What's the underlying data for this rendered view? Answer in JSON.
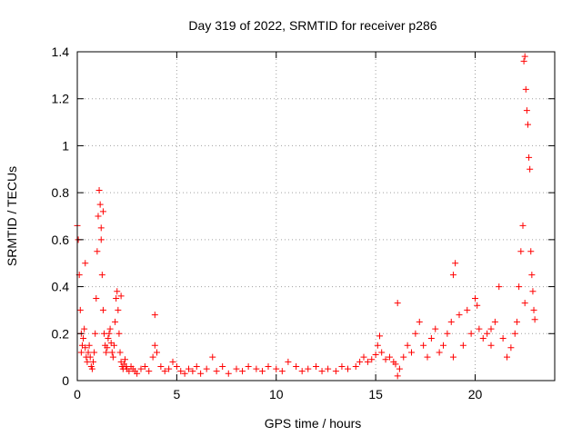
{
  "chart_data": {
    "type": "scatter",
    "title": "Day 319 of 2022, SRMTID for receiver p286",
    "xlabel": "GPS time / hours",
    "ylabel": "SRMTID / TECUs",
    "xlim": [
      0,
      24
    ],
    "ylim": [
      0,
      1.4
    ],
    "xticks": [
      0,
      5,
      10,
      15,
      20
    ],
    "xtick_labels": [
      "0",
      "5",
      "10",
      "15",
      "20"
    ],
    "yticks": [
      0,
      0.2,
      0.4,
      0.6,
      0.8,
      1.0,
      1.2,
      1.4
    ],
    "ytick_labels": [
      "0",
      "0.2",
      "0.4",
      "0.6",
      "0.8",
      "1",
      "1.2",
      "1.4"
    ],
    "grid": true,
    "series": [
      {
        "name": "SRMTID",
        "color": "#ff0000",
        "marker": "plus",
        "x": [
          0.0,
          0.05,
          0.1,
          0.15,
          0.2,
          0.25,
          0.3,
          0.35,
          0.4,
          0.45,
          0.5,
          0.55,
          0.6,
          0.65,
          0.7,
          0.75,
          0.8,
          0.85,
          0.9,
          0.95,
          1.0,
          1.05,
          1.1,
          1.15,
          1.2,
          1.25,
          1.3,
          1.35,
          1.4,
          1.45,
          1.5,
          1.55,
          1.6,
          1.65,
          1.7,
          1.75,
          1.8,
          1.85,
          1.9,
          1.95,
          2.0,
          2.05,
          2.1,
          2.15,
          2.2,
          2.25,
          2.3,
          2.35,
          2.4,
          2.45,
          2.5,
          2.6,
          2.7,
          2.8,
          2.9,
          3.0,
          3.2,
          3.4,
          3.6,
          3.8,
          3.9,
          4.0,
          4.2,
          4.4,
          4.6,
          4.8,
          5.0,
          5.2,
          5.4,
          5.6,
          5.8,
          6.0,
          6.2,
          6.5,
          6.8,
          7.0,
          7.3,
          7.6,
          8.0,
          8.3,
          8.6,
          9.0,
          9.3,
          9.6,
          10.0,
          10.3,
          10.6,
          11.0,
          11.3,
          11.6,
          12.0,
          12.3,
          12.6,
          13.0,
          13.3,
          13.6,
          14.0,
          14.2,
          14.4,
          14.6,
          14.8,
          15.0,
          15.1,
          15.2,
          15.3,
          15.5,
          15.7,
          15.9,
          16.0,
          16.1,
          16.2,
          16.4,
          16.6,
          16.8,
          17.0,
          17.2,
          17.4,
          17.6,
          17.8,
          18.0,
          18.2,
          18.4,
          18.6,
          18.8,
          18.9,
          19.0,
          19.2,
          19.4,
          19.6,
          19.8,
          20.0,
          20.1,
          20.2,
          20.4,
          20.6,
          20.8,
          21.0,
          21.2,
          21.4,
          21.6,
          21.8,
          22.0,
          22.1,
          22.2,
          22.3,
          22.4,
          22.45,
          22.5,
          22.55,
          22.6,
          22.65,
          22.7,
          22.75,
          22.8,
          22.85,
          22.9,
          22.95,
          23.0,
          0.2,
          0.4,
          1.2,
          1.3,
          2.2,
          3.9,
          16.1,
          18.9,
          20.8,
          22.5
        ],
        "y": [
          0.66,
          0.6,
          0.45,
          0.3,
          0.2,
          0.15,
          0.18,
          0.22,
          0.14,
          0.1,
          0.08,
          0.12,
          0.15,
          0.1,
          0.06,
          0.05,
          0.08,
          0.12,
          0.2,
          0.35,
          0.55,
          0.7,
          0.81,
          0.75,
          0.6,
          0.45,
          0.3,
          0.2,
          0.15,
          0.12,
          0.14,
          0.18,
          0.2,
          0.22,
          0.16,
          0.12,
          0.1,
          0.15,
          0.25,
          0.35,
          0.38,
          0.3,
          0.2,
          0.12,
          0.08,
          0.06,
          0.05,
          0.07,
          0.09,
          0.06,
          0.05,
          0.04,
          0.06,
          0.05,
          0.04,
          0.03,
          0.05,
          0.06,
          0.04,
          0.1,
          0.15,
          0.12,
          0.06,
          0.04,
          0.05,
          0.08,
          0.06,
          0.04,
          0.03,
          0.05,
          0.04,
          0.06,
          0.03,
          0.05,
          0.1,
          0.04,
          0.06,
          0.03,
          0.05,
          0.04,
          0.06,
          0.05,
          0.04,
          0.06,
          0.05,
          0.04,
          0.08,
          0.06,
          0.04,
          0.05,
          0.06,
          0.04,
          0.05,
          0.04,
          0.06,
          0.05,
          0.06,
          0.08,
          0.1,
          0.08,
          0.09,
          0.11,
          0.15,
          0.19,
          0.12,
          0.09,
          0.1,
          0.08,
          0.07,
          0.33,
          0.05,
          0.1,
          0.15,
          0.12,
          0.2,
          0.25,
          0.15,
          0.1,
          0.18,
          0.22,
          0.12,
          0.15,
          0.2,
          0.25,
          0.45,
          0.5,
          0.28,
          0.15,
          0.3,
          0.2,
          0.35,
          0.32,
          0.22,
          0.18,
          0.2,
          0.15,
          0.25,
          0.4,
          0.18,
          0.1,
          0.14,
          0.2,
          0.25,
          0.4,
          0.55,
          0.66,
          1.36,
          1.38,
          1.24,
          1.15,
          1.09,
          0.95,
          0.9,
          0.55,
          0.45,
          0.38,
          0.3,
          0.26,
          0.12,
          0.5,
          0.65,
          0.72,
          0.36,
          0.28,
          0.02,
          0.1,
          0.22,
          0.33
        ]
      }
    ]
  }
}
